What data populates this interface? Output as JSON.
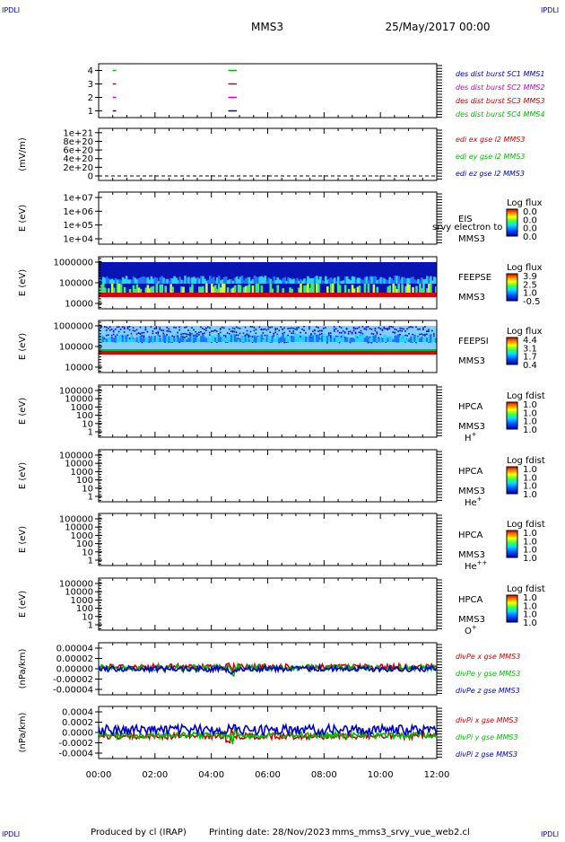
{
  "corner_left": "IPDLI",
  "corner_right": "IPDLI",
  "title": "MMS3",
  "date": "25/May/2017 00:00",
  "footer": {
    "producer": "Produced by cl (IRAP)",
    "printing_label": "Printing date: 28/Nov/2023",
    "script": "mms_mms3_srvy_vue_web2.cl"
  },
  "chart_data": [
    {
      "type": "scatter",
      "panel": "des-burst",
      "ylim": [
        0.5,
        4.5
      ],
      "yticks": [
        "1",
        "2",
        "3",
        "4"
      ],
      "legend": [
        {
          "label": "des dist burst SC1 MMS1",
          "color": "#0000cc"
        },
        {
          "label": "des dist burst SC2 MMS2",
          "color": "#cc00cc"
        },
        {
          "label": "des dist burst SC3 MMS3",
          "color": "#cc0000"
        },
        {
          "label": "des dist burst SC4 MMS4",
          "color": "#00bb00"
        }
      ],
      "segments": [
        {
          "sc": 1,
          "t0": 0.5,
          "t1": 0.62,
          "color": "#0000cc"
        },
        {
          "sc": 2,
          "t0": 0.5,
          "t1": 0.62,
          "color": "#cc00cc"
        },
        {
          "sc": 3,
          "t0": 0.5,
          "t1": 0.62,
          "color": "#cc0000"
        },
        {
          "sc": 4,
          "t0": 0.5,
          "t1": 0.62,
          "color": "#00bb00"
        },
        {
          "sc": 1,
          "t0": 4.6,
          "t1": 4.9,
          "color": "#0000cc"
        },
        {
          "sc": 2,
          "t0": 4.6,
          "t1": 4.9,
          "color": "#cc00cc"
        },
        {
          "sc": 3,
          "t0": 4.6,
          "t1": 4.9,
          "color": "#cc0000"
        },
        {
          "sc": 4,
          "t0": 4.6,
          "t1": 4.9,
          "color": "#00bb00"
        }
      ]
    },
    {
      "type": "line",
      "panel": "edi",
      "ylabel": "(mV/m)",
      "yticks": [
        "0",
        "2e+20",
        "4e+20",
        "6e+20",
        "8e+20",
        "1e+21"
      ],
      "ylim": [
        0,
        1.1e+21
      ],
      "legend": [
        {
          "label": "edi ex gse l2 MMS3",
          "color": "#cc0000"
        },
        {
          "label": "edi ey gse l2 MMS3",
          "color": "#00bb00"
        },
        {
          "label": "edi ez gse l2 MMS3",
          "color": "#0000cc"
        }
      ]
    },
    {
      "type": "heatmap",
      "panel": "eis",
      "ylabel": "E (eV)",
      "yticks": [
        "1e+04",
        "1e+05",
        "1e+06",
        "1e+07"
      ],
      "labels": [
        "EIS",
        "MMS3"
      ],
      "overlay_text": "srvy electron to",
      "colorbar": {
        "title": "Log flux",
        "ticks": [
          "0.0",
          "0.0",
          "0.0",
          "0.0"
        ]
      }
    },
    {
      "type": "heatmap",
      "panel": "feepse",
      "ylabel": "E (eV)",
      "yticks": [
        "10000",
        "100000",
        "1000000"
      ],
      "labels": [
        "FEEPSE",
        "MMS3"
      ],
      "colorbar": {
        "title": "Log flux",
        "ticks": [
          "3.9",
          "2.5",
          "1.0",
          "-0.5"
        ]
      }
    },
    {
      "type": "heatmap",
      "panel": "feepsi",
      "ylabel": "E (eV)",
      "yticks": [
        "10000",
        "100000",
        "1000000"
      ],
      "labels": [
        "FEEPSI",
        "MMS3"
      ],
      "colorbar": {
        "title": "Log flux",
        "ticks": [
          "4.4",
          "3.1",
          "1.7",
          "0.4"
        ]
      }
    },
    {
      "type": "heatmap",
      "panel": "hpca-h",
      "ylabel": "E (eV)",
      "yticks": [
        "1",
        "10",
        "100",
        "1000",
        "10000",
        "100000"
      ],
      "labels": [
        "HPCA",
        "MMS3"
      ],
      "species": "H",
      "species_sup": "+",
      "colorbar": {
        "title": "Log fdist",
        "ticks": [
          "1.0",
          "1.0",
          "1.0",
          "1.0"
        ]
      }
    },
    {
      "type": "heatmap",
      "panel": "hpca-he",
      "ylabel": "E (eV)",
      "yticks": [
        "1",
        "10",
        "100",
        "1000",
        "10000",
        "100000"
      ],
      "labels": [
        "HPCA",
        "MMS3"
      ],
      "species": "He",
      "species_sup": "+",
      "colorbar": {
        "title": "Log fdist",
        "ticks": [
          "1.0",
          "1.0",
          "1.0",
          "1.0"
        ]
      }
    },
    {
      "type": "heatmap",
      "panel": "hpca-he2",
      "ylabel": "E (eV)",
      "yticks": [
        "1",
        "10",
        "100",
        "1000",
        "10000",
        "100000"
      ],
      "labels": [
        "HPCA",
        "MMS3"
      ],
      "species": "He",
      "species_sup": "++",
      "colorbar": {
        "title": "Log fdist",
        "ticks": [
          "1.0",
          "1.0",
          "1.0",
          "1.0"
        ]
      }
    },
    {
      "type": "heatmap",
      "panel": "hpca-o",
      "ylabel": "E (eV)",
      "yticks": [
        "1",
        "10",
        "100",
        "1000",
        "10000",
        "100000"
      ],
      "labels": [
        "HPCA",
        "MMS3"
      ],
      "species": "O",
      "species_sup": "+",
      "colorbar": {
        "title": "Log fdist",
        "ticks": [
          "1.0",
          "1.0",
          "1.0",
          "1.0"
        ]
      }
    },
    {
      "type": "line",
      "panel": "divpe",
      "ylabel": "(nPa/km)",
      "yticks": [
        "-0.00004",
        "-0.00002",
        "0.00000",
        "0.00002",
        "0.00004"
      ],
      "ylim": [
        -4.5e-05,
        4.5e-05
      ],
      "legend": [
        {
          "label": "divPe x gse MMS3",
          "color": "#cc0000"
        },
        {
          "label": "divPe y gse MMS3",
          "color": "#00bb00"
        },
        {
          "label": "divPe z gse MMS3",
          "color": "#0000cc"
        }
      ]
    },
    {
      "type": "line",
      "panel": "divpi",
      "ylabel": "(nPa/km)",
      "yticks": [
        "-0.0004",
        "-0.0002",
        "0.0000",
        "0.0002",
        "0.0004"
      ],
      "ylim": [
        -0.00045,
        0.00045
      ],
      "legend": [
        {
          "label": "divPi x gse MMS3",
          "color": "#cc0000"
        },
        {
          "label": "divPi y gse MMS3",
          "color": "#00bb00"
        },
        {
          "label": "divPi z gse MMS3",
          "color": "#0000cc"
        }
      ]
    }
  ],
  "time_axis": {
    "labels": [
      "00:00",
      "02:00",
      "04:00",
      "06:00",
      "08:00",
      "10:00",
      "12:00"
    ],
    "range_hours": [
      0,
      12
    ]
  }
}
